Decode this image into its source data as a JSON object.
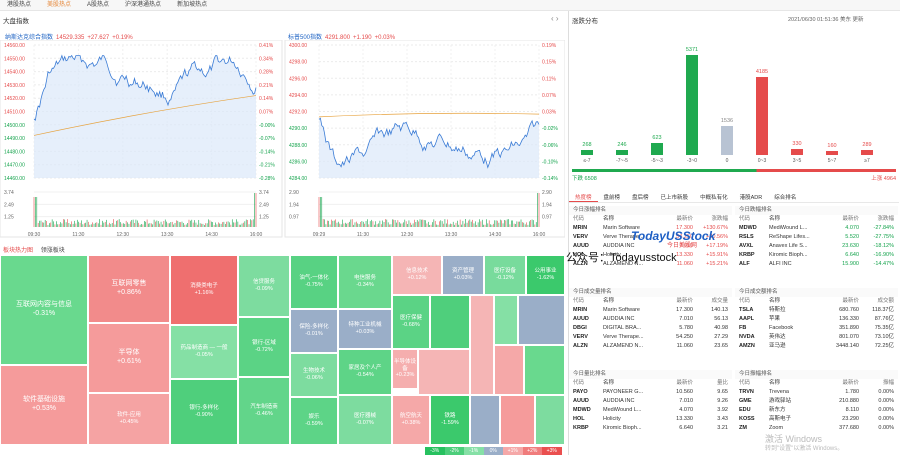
{
  "nav": {
    "tabs": [
      "港股热点",
      "美股热点",
      "A股热点",
      "沪深港通热点",
      "新加坡热点"
    ],
    "active": 1
  },
  "market_index": {
    "title": "大盘指数",
    "nasdaq": {
      "name": "纳斯达克综合指数",
      "price": "14529.335",
      "change": "+27.627",
      "pct": "+0.19%",
      "left_axis": [
        "14560.00",
        "14550.00",
        "14540.00",
        "14530.00",
        "14520.00",
        "14510.00",
        "14500.00",
        "14490.00",
        "14480.00",
        "14470.00",
        "14460.00"
      ],
      "right_axis": [
        "0.41%",
        "0.34%",
        "0.28%",
        "0.21%",
        "0.14%",
        "0.07%",
        "-0.00%",
        "-0.07%",
        "-0.14%",
        "-0.21%",
        "-0.28%"
      ],
      "x_labels": [
        "09:30",
        "11:30",
        "12:30",
        "13:30",
        "14:30",
        "16:00"
      ],
      "vol_left": [
        "3.74",
        "2.49",
        "1.25"
      ],
      "vol_right": [
        "3.74",
        "2.49",
        "1.25"
      ]
    },
    "sp500": {
      "name": "标普500指数",
      "price": "4291.800",
      "change": "+1.190",
      "pct": "+0.03%",
      "left_axis": [
        "4300.00",
        "4298.00",
        "4296.00",
        "4294.00",
        "4292.00",
        "4290.00",
        "4288.00",
        "4286.00",
        "4284.00"
      ],
      "right_axis": [
        "0.19%",
        "0.15%",
        "0.11%",
        "0.07%",
        "0.03%",
        "-0.02%",
        "-0.06%",
        "-0.10%",
        "-0.14%"
      ],
      "x_labels": [
        "09:29",
        "11:30",
        "12:30",
        "13:30",
        "14:30",
        "16:00"
      ],
      "vol_left": [
        "2.90",
        "1.94",
        "0.97"
      ],
      "vol_right": [
        "2.90",
        "1.94",
        "0.97"
      ]
    }
  },
  "heatmap": {
    "tabs": [
      "板块热力图",
      "领涨板块"
    ],
    "cells": [
      {
        "name": "互联网内容与信息",
        "pct": "-0.31%",
        "c": "#69d98e"
      },
      {
        "name": "软件基础设施",
        "pct": "+0.53%",
        "c": "#f59b9b"
      },
      {
        "name": "互联网零售",
        "pct": "+0.86%",
        "c": "#f28b8b"
      },
      {
        "name": "半导体",
        "pct": "+0.61%",
        "c": "#f59b9b"
      },
      {
        "name": "软件-应用",
        "pct": "+0.45%",
        "c": "#f5a3a3"
      },
      {
        "name": "消费类电子",
        "pct": "+1.16%",
        "c": "#ef6f6f"
      },
      {
        "name": "药品制造商 — 一般",
        "pct": "-0.05%",
        "c": "#85e0a5"
      },
      {
        "name": "银行-多样化",
        "pct": "-0.90%",
        "c": "#4fcf7c"
      },
      {
        "name": "信贷服务",
        "pct": "-0.09%",
        "c": "#7ddc9f"
      },
      {
        "name": "银行-区域",
        "pct": "-0.72%",
        "c": "#5bd385"
      },
      {
        "name": "汽车制造商",
        "pct": "-0.46%",
        "c": "#62d58a"
      },
      {
        "name": "油气-一体化",
        "pct": "-0.75%",
        "c": "#58d283"
      },
      {
        "name": "保险-多样化",
        "pct": "-0.01%",
        "c": "#9aaec8"
      },
      {
        "name": "生物技术",
        "pct": "-0.06%",
        "c": "#7ddc9f"
      },
      {
        "name": "娱乐",
        "pct": "-0.59%",
        "c": "#5dd487"
      },
      {
        "name": "电信服务",
        "pct": "-0.34%",
        "c": "#6ad88e"
      },
      {
        "name": "特种工业机械",
        "pct": "+0.03%",
        "c": "#9aaec8"
      },
      {
        "name": "家居及个人产",
        "pct": "-0.54%",
        "c": "#5ed487"
      },
      {
        "name": "半导体设备",
        "pct": "+0.23%",
        "c": "#f5aeae"
      },
      {
        "name": "航空航天",
        "pct": "+0.38%",
        "c": "#f5a8a8"
      },
      {
        "name": "医疗器械",
        "pct": "-0.07%",
        "c": "#7ddc9f"
      },
      {
        "name": "信息技术",
        "pct": "+0.12%",
        "c": "#f5b5b5"
      },
      {
        "name": "资产管理",
        "pct": "+0.03%",
        "c": "#9aaec8"
      },
      {
        "name": "医疗设备",
        "pct": "-0.12%",
        "c": "#78db9c"
      },
      {
        "name": "公用事业",
        "pct": "-1.62%",
        "c": "#3bc96c"
      },
      {
        "name": "铁路",
        "pct": "-1.59%",
        "c": "#3bc96c"
      },
      {
        "name": "医疗保健",
        "pct": "-0.68%",
        "c": "#5bd385"
      }
    ]
  },
  "breadth": {
    "title": "涨跌分布",
    "time": "2021/06/30 01:51:36 美东 更新",
    "bars": [
      {
        "label": "≤-7",
        "val": "268"
      },
      {
        "label": "-7~-5",
        "val": "246"
      },
      {
        "label": "-5~-3",
        "val": "623"
      },
      {
        "label": "-3~0",
        "val": "5371"
      },
      {
        "label": "0",
        "val": "1536"
      },
      {
        "label": "0~3",
        "val": "4185"
      },
      {
        "label": "3~5",
        "val": "330"
      },
      {
        "label": "5~7",
        "val": "160"
      },
      {
        "label": "≥7",
        "val": "289"
      }
    ],
    "down_label": "下跌 6508",
    "up_label": "上涨 4964"
  },
  "hot": {
    "tabs": [
      "热度榜",
      "盘前榜",
      "盘后榜",
      "已上市新股",
      "中概私有化",
      "港股ADR",
      "综合排名"
    ],
    "blocks": [
      {
        "title": "今日涨幅排名",
        "h": [
          "代码",
          "名称",
          "最新价",
          "涨跌幅"
        ],
        "rows": [
          [
            "MRIN",
            "Marin Software",
            "17.300",
            "+130.67%"
          ],
          [
            "VERV",
            "Verve Therape...",
            "54.250",
            "+20.56%"
          ],
          [
            "AUUD",
            "AUDDIA INC",
            "7.010",
            "+17.19%"
          ],
          [
            "HOL",
            "Holicity",
            "13.330",
            "+15.91%"
          ],
          [
            "ALZN",
            "ALZAMEND N...",
            "11.060",
            "+15.21%"
          ]
        ]
      },
      {
        "title": "今日跌幅排名",
        "h": [
          "代码",
          "名称",
          "最新价",
          "涨跌幅"
        ],
        "rows": [
          [
            "MDWD",
            "MediWound L...",
            "4.070",
            "-27.84%"
          ],
          [
            "RSLS",
            "ReShape Lifes...",
            "5.520",
            "-27.75%"
          ],
          [
            "AVXL",
            "Anavex Life S...",
            "23.630",
            "-18.12%"
          ],
          [
            "KRBP",
            "Kiromic Bioph...",
            "6.640",
            "-16.90%"
          ],
          [
            "ALF",
            "ALFI INC",
            "15.900",
            "-14.47%"
          ]
        ]
      },
      {
        "title": "今日成交量排名",
        "h": [
          "代码",
          "名称",
          "最新价",
          "成交量"
        ],
        "rows": [
          [
            "MRIN",
            "Marin Software",
            "17.300",
            "140.13"
          ],
          [
            "AUUD",
            "AUDDIA INC",
            "7.010",
            "56.13"
          ],
          [
            "DBGI",
            "DIGITAL BRA...",
            "5.780",
            "40.98"
          ],
          [
            "VERV",
            "Verve Therape...",
            "54.250",
            "27.29"
          ],
          [
            "ALZN",
            "ALZAMEND N...",
            "11.060",
            "23.65"
          ]
        ]
      },
      {
        "title": "今日成交额排名",
        "h": [
          "代码",
          "名称",
          "最新价",
          "成交额"
        ],
        "rows": [
          [
            "TSLA",
            "特斯拉",
            "680.760",
            "118.37亿"
          ],
          [
            "AAPL",
            "苹果",
            "136.330",
            "87.76亿"
          ],
          [
            "FB",
            "Facebook",
            "351.890",
            "75.35亿"
          ],
          [
            "NVDA",
            "英伟达",
            "801.070",
            "73.10亿"
          ],
          [
            "AMZN",
            "亚马逊",
            "3448.140",
            "72.25亿"
          ]
        ]
      },
      {
        "title": "今日量比排名",
        "h": [
          "代码",
          "名称",
          "最新价",
          "量比"
        ],
        "rows": [
          [
            "PAYO",
            "PAYONEER G...",
            "10.560",
            "9.65"
          ],
          [
            "AUUD",
            "AUDDIA INC",
            "7.010",
            "9.26"
          ],
          [
            "MDWD",
            "MediWound L...",
            "4.070",
            "3.92"
          ],
          [
            "HOL",
            "Holicity",
            "13.330",
            "3.43"
          ],
          [
            "KRBP",
            "Kiromic Bioph...",
            "6.640",
            "3.21"
          ]
        ]
      },
      {
        "title": "今日振幅排名",
        "h": [
          "代码",
          "名称",
          "最新价",
          "振幅"
        ],
        "rows": [
          [
            "TRVN",
            "Trevena",
            "1.780",
            "0.00%"
          ],
          [
            "GME",
            "游戏驿站",
            "210.880",
            "0.00%"
          ],
          [
            "EDU",
            "新东方",
            "8.110",
            "0.00%"
          ],
          [
            "KOSS",
            "高斯电子",
            "23.290",
            "0.00%"
          ],
          [
            "ZM",
            "Zoom",
            "377.680",
            "0.00%"
          ]
        ]
      }
    ]
  },
  "watermark": {
    "brand": "TodayUSStock",
    "sub": "今日美股网",
    "wechat": "公众号：Todayusstock"
  },
  "os_overlay": {
    "line1": "激活 Windows",
    "line2": "转到\"设置\"以激活 Windows。"
  },
  "legend": [
    "-3%",
    "-2%",
    "-1%",
    "0%",
    "+1%",
    "+2%",
    "+3%"
  ],
  "legend_colors": [
    "#27c15f",
    "#4dce7b",
    "#86e0a6",
    "#9aaec8",
    "#f5a8a8",
    "#f07c7c",
    "#ea4f4f"
  ]
}
